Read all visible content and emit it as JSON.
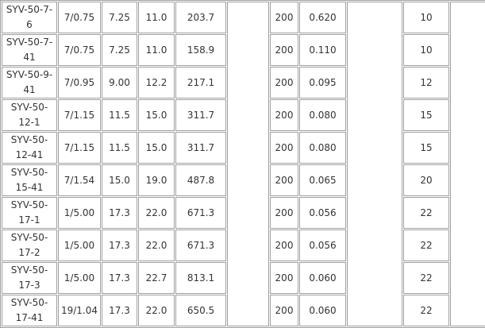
{
  "rows": [
    [
      "SYV-50-7-6",
      "7/0.75",
      "7.25",
      "11.0",
      "203.7",
      "200",
      "0.620",
      "10"
    ],
    [
      "SYV-50-7-41",
      "7/0.75",
      "7.25",
      "11.0",
      "158.9",
      "200",
      "0.110",
      "10"
    ],
    [
      "SYV-50-9-41",
      "7/0.95",
      "9.00",
      "12.2",
      "217.1",
      "200",
      "0.095",
      "12"
    ],
    [
      "SYV-50-12-1",
      "7/1.15",
      "11.5",
      "15.0",
      "311.7",
      "200",
      "0.080",
      "15"
    ],
    [
      "SYV-50-12-41",
      "7/1.15",
      "11.5",
      "15.0",
      "311.7",
      "200",
      "0.080",
      "15"
    ],
    [
      "SYV-50-15-41",
      "7/1.54",
      "15.0",
      "19.0",
      "487.8",
      "200",
      "0.065",
      "20"
    ],
    [
      "SYV-50-17-1",
      "1/5.00",
      "17.3",
      "22.0",
      "671.3",
      "200",
      "0.056",
      "22"
    ],
    [
      "SYV-50-17-2",
      "1/5.00",
      "17.3",
      "22.0",
      "671.3",
      "200",
      "0.056",
      "22"
    ],
    [
      "SYV-50-17-3",
      "1/5.00",
      "17.3",
      "22.7",
      "813.1",
      "200",
      "0.060",
      "22"
    ],
    [
      "SYV-50-17-41",
      "19/1.04",
      "17.3",
      "22.0",
      "650.5",
      "200",
      "0.060",
      "22"
    ]
  ]
}
